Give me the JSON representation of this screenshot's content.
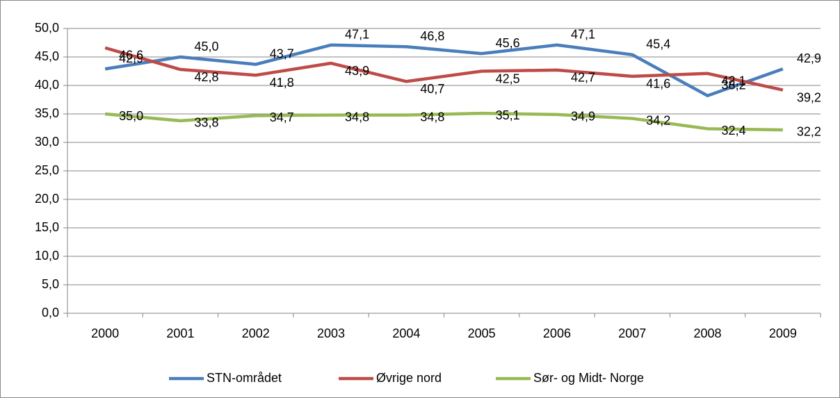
{
  "chart_data": {
    "type": "line",
    "categories": [
      "2000",
      "2001",
      "2002",
      "2003",
      "2004",
      "2005",
      "2006",
      "2007",
      "2008",
      "2009"
    ],
    "series": [
      {
        "name": "STN-området",
        "color": "#4a7ebb",
        "values": [
          42.9,
          45.0,
          43.7,
          47.1,
          46.8,
          45.6,
          47.1,
          45.4,
          38.2,
          42.9
        ],
        "value_labels": [
          "42,9",
          "45,0",
          "43,7",
          "47,1",
          "46,8",
          "45,6",
          "47,1",
          "45,4",
          "38,2",
          "42,9"
        ]
      },
      {
        "name": "Øvrige nord",
        "color": "#be4b48",
        "values": [
          46.6,
          42.8,
          41.8,
          43.9,
          40.7,
          42.5,
          42.7,
          41.6,
          42.1,
          39.2
        ],
        "value_labels": [
          "46,6",
          "42,8",
          "41,8",
          "43,9",
          "40,7",
          "42,5",
          "42,7",
          "41,6",
          "42,1",
          "39,2"
        ]
      },
      {
        "name": "Sør- og Midt- Norge",
        "color": "#98b954",
        "values": [
          35.0,
          33.8,
          34.7,
          34.8,
          34.8,
          35.1,
          34.9,
          34.2,
          32.4,
          32.2
        ],
        "value_labels": [
          "35,0",
          "33,8",
          "34,7",
          "34,8",
          "34,8",
          "35,1",
          "34,9",
          "34,2",
          "32,4",
          "32,2"
        ]
      }
    ],
    "ylim": [
      0,
      50
    ],
    "yticks": [
      {
        "value": 0,
        "label": "0,0"
      },
      {
        "value": 5,
        "label": "5,0"
      },
      {
        "value": 10,
        "label": "10,0"
      },
      {
        "value": 15,
        "label": "15,0"
      },
      {
        "value": 20,
        "label": "20,0"
      },
      {
        "value": 25,
        "label": "25,0"
      },
      {
        "value": 30,
        "label": "30,0"
      },
      {
        "value": 35,
        "label": "35,0"
      },
      {
        "value": 40,
        "label": "40,0"
      },
      {
        "value": 45,
        "label": "45,0"
      },
      {
        "value": 50,
        "label": "50,0"
      }
    ],
    "grid": true,
    "legend": "bottom"
  }
}
